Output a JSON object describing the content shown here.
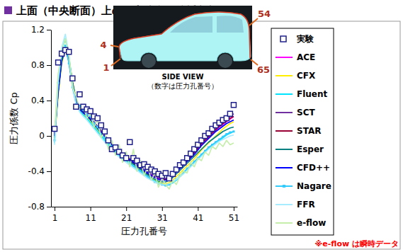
{
  "chart_data": {
    "type": "line",
    "title": "上面（中央断面）上の圧力分布（偏揺角無し）",
    "x_label": "圧力孔番号",
    "y_label": "圧力係数 Cp",
    "x": [
      1,
      2,
      3,
      4,
      5,
      6,
      7,
      8,
      9,
      10,
      11,
      12,
      13,
      14,
      15,
      16,
      17,
      18,
      19,
      20,
      21,
      22,
      23,
      24,
      25,
      26,
      27,
      28,
      29,
      30,
      31,
      32,
      33,
      34,
      35,
      36,
      37,
      38,
      39,
      40,
      41,
      42,
      43,
      44,
      45,
      46,
      47,
      48,
      49,
      50,
      51
    ],
    "xlim": [
      0,
      52
    ],
    "xticks": [
      1,
      11,
      21,
      31,
      41,
      51
    ],
    "ylim": [
      -0.8,
      1.2
    ],
    "yticks": [
      -0.8,
      -0.4,
      0,
      0.4,
      0.8,
      1.2
    ],
    "grid": false,
    "legend": "right",
    "series": [
      {
        "name": "実験",
        "type": "scatter",
        "marker": "square",
        "color": "#1f1f8c",
        "values": [
          0.08,
          0.83,
          0.93,
          0.97,
          0.95,
          0.65,
          0.33,
          0.47,
          0.33,
          0.3,
          0.28,
          0.22,
          0.2,
          0.12,
          0.05,
          -0.05,
          -0.15,
          -0.13,
          -0.18,
          -0.22,
          -0.25,
          -0.07,
          -0.25,
          -0.28,
          -0.33,
          -0.32,
          -0.35,
          -0.38,
          -0.4,
          -0.43,
          -0.45,
          -0.42,
          -0.48,
          -0.43,
          -0.38,
          -0.33,
          -0.3,
          -0.25,
          -0.2,
          -0.15,
          -0.1,
          -0.05,
          0.0,
          0.03,
          0.08,
          0.12,
          0.15,
          0.18,
          0.2,
          0.25,
          0.35
        ]
      },
      {
        "name": "ACE",
        "type": "line",
        "color": "#ff00ff",
        "values": [
          0.0,
          0.52,
          0.88,
          1.0,
          0.85,
          0.58,
          0.4,
          0.32,
          0.28,
          0.25,
          0.2,
          0.15,
          0.1,
          0.05,
          0.0,
          -0.05,
          -0.1,
          -0.14,
          -0.18,
          -0.21,
          -0.24,
          -0.27,
          -0.3,
          -0.33,
          -0.36,
          -0.39,
          -0.42,
          -0.44,
          -0.46,
          -0.48,
          -0.49,
          -0.49,
          -0.47,
          -0.44,
          -0.4,
          -0.36,
          -0.32,
          -0.28,
          -0.24,
          -0.2,
          -0.15,
          -0.1,
          -0.06,
          -0.02,
          0.02,
          0.06,
          0.1,
          0.13,
          0.16,
          0.19,
          0.22
        ]
      },
      {
        "name": "CFX",
        "type": "line",
        "color": "#ffee00",
        "values": [
          -0.05,
          0.45,
          0.82,
          0.98,
          0.88,
          0.62,
          0.42,
          0.3,
          0.25,
          0.22,
          0.17,
          0.12,
          0.07,
          0.02,
          -0.03,
          -0.08,
          -0.13,
          -0.17,
          -0.21,
          -0.24,
          -0.27,
          -0.3,
          -0.33,
          -0.36,
          -0.39,
          -0.42,
          -0.45,
          -0.48,
          -0.5,
          -0.52,
          -0.54,
          -0.54,
          -0.53,
          -0.5,
          -0.46,
          -0.42,
          -0.38,
          -0.34,
          -0.3,
          -0.26,
          -0.21,
          -0.16,
          -0.12,
          -0.08,
          -0.04,
          0.0,
          0.04,
          0.08,
          0.11,
          0.14,
          0.16
        ]
      },
      {
        "name": "Fluent",
        "type": "line",
        "color": "#00e5ff",
        "values": [
          -0.08,
          0.55,
          0.95,
          1.1,
          0.9,
          0.6,
          0.38,
          0.28,
          0.24,
          0.2,
          0.15,
          0.1,
          0.05,
          0.0,
          -0.05,
          -0.1,
          -0.14,
          -0.18,
          -0.22,
          -0.25,
          -0.28,
          -0.31,
          -0.34,
          -0.37,
          -0.4,
          -0.43,
          -0.46,
          -0.49,
          -0.51,
          -0.53,
          -0.55,
          -0.56,
          -0.55,
          -0.53,
          -0.5,
          -0.46,
          -0.42,
          -0.38,
          -0.34,
          -0.3,
          -0.26,
          -0.22,
          -0.18,
          -0.14,
          -0.11,
          -0.08,
          -0.05,
          -0.02,
          0.01,
          0.03,
          0.05
        ]
      },
      {
        "name": "SCT",
        "type": "line",
        "color": "#7030a0",
        "values": [
          0.0,
          0.5,
          0.86,
          0.99,
          0.86,
          0.6,
          0.41,
          0.31,
          0.27,
          0.24,
          0.2,
          0.16,
          0.11,
          0.06,
          0.01,
          -0.04,
          -0.09,
          -0.13,
          -0.17,
          -0.2,
          -0.23,
          -0.26,
          -0.29,
          -0.32,
          -0.35,
          -0.38,
          -0.41,
          -0.43,
          -0.45,
          -0.47,
          -0.48,
          -0.48,
          -0.46,
          -0.43,
          -0.39,
          -0.35,
          -0.31,
          -0.27,
          -0.23,
          -0.18,
          -0.13,
          -0.08,
          -0.04,
          0.0,
          0.04,
          0.08,
          0.12,
          0.16,
          0.19,
          0.22,
          0.25
        ]
      },
      {
        "name": "STAR",
        "type": "line",
        "color": "#990033",
        "values": [
          0.02,
          0.5,
          0.85,
          0.98,
          0.86,
          0.6,
          0.4,
          0.31,
          0.27,
          0.24,
          0.19,
          0.14,
          0.09,
          0.04,
          -0.01,
          -0.06,
          -0.11,
          -0.15,
          -0.19,
          -0.22,
          -0.25,
          -0.28,
          -0.31,
          -0.34,
          -0.37,
          -0.4,
          -0.43,
          -0.45,
          -0.47,
          -0.49,
          -0.5,
          -0.49,
          -0.47,
          -0.44,
          -0.4,
          -0.36,
          -0.32,
          -0.28,
          -0.24,
          -0.19,
          -0.14,
          -0.09,
          -0.05,
          -0.01,
          0.03,
          0.07,
          0.11,
          0.14,
          0.17,
          0.2,
          0.22
        ]
      },
      {
        "name": "Esper",
        "type": "line",
        "color": "#008080",
        "values": [
          -0.02,
          0.48,
          0.84,
          0.97,
          0.87,
          0.61,
          0.42,
          0.32,
          0.27,
          0.23,
          0.18,
          0.13,
          0.08,
          0.03,
          -0.02,
          -0.07,
          -0.12,
          -0.16,
          -0.2,
          -0.23,
          -0.26,
          -0.29,
          -0.32,
          -0.35,
          -0.38,
          -0.41,
          -0.44,
          -0.47,
          -0.49,
          -0.51,
          -0.52,
          -0.52,
          -0.5,
          -0.47,
          -0.43,
          -0.39,
          -0.35,
          -0.31,
          -0.27,
          -0.23,
          -0.19,
          -0.15,
          -0.11,
          -0.07,
          -0.04,
          -0.01,
          0.02,
          0.05,
          0.07,
          0.09,
          0.1
        ]
      },
      {
        "name": "CFD++",
        "type": "line",
        "color": "#0000ff",
        "values": [
          0.0,
          0.5,
          0.87,
          1.0,
          0.84,
          0.57,
          0.39,
          0.3,
          0.26,
          0.23,
          0.19,
          0.14,
          0.09,
          0.04,
          -0.01,
          -0.06,
          -0.1,
          -0.14,
          -0.18,
          -0.21,
          -0.24,
          -0.27,
          -0.3,
          -0.33,
          -0.36,
          -0.39,
          -0.42,
          -0.45,
          -0.47,
          -0.49,
          -0.5,
          -0.5,
          -0.48,
          -0.45,
          -0.41,
          -0.37,
          -0.33,
          -0.29,
          -0.25,
          -0.21,
          -0.16,
          -0.11,
          -0.07,
          -0.03,
          0.01,
          0.05,
          0.08,
          0.11,
          0.14,
          0.16,
          0.18
        ]
      },
      {
        "name": "Nagare",
        "type": "line",
        "marker": "square",
        "color": "#33ccff",
        "values": [
          -0.05,
          0.6,
          0.92,
          1.02,
          0.82,
          0.55,
          0.36,
          0.34,
          0.3,
          0.24,
          0.22,
          0.14,
          0.1,
          0.02,
          -0.02,
          -0.08,
          -0.12,
          -0.16,
          -0.2,
          -0.24,
          -0.27,
          -0.3,
          -0.34,
          -0.37,
          -0.4,
          -0.43,
          -0.46,
          -0.49,
          -0.52,
          -0.54,
          -0.55,
          -0.56,
          -0.55,
          -0.52,
          -0.49,
          -0.45,
          -0.41,
          -0.37,
          -0.33,
          -0.29,
          -0.25,
          -0.21,
          -0.17,
          -0.13,
          -0.1,
          -0.07,
          -0.04,
          -0.01,
          0.02,
          0.04,
          0.05
        ]
      },
      {
        "name": "FFR",
        "type": "line",
        "color": "#a8ecff",
        "values": [
          -0.1,
          0.62,
          1.0,
          1.15,
          0.92,
          0.58,
          0.36,
          0.27,
          0.22,
          0.18,
          0.13,
          0.08,
          0.03,
          -0.02,
          -0.07,
          -0.12,
          -0.16,
          -0.2,
          -0.24,
          -0.27,
          -0.3,
          -0.33,
          -0.36,
          -0.39,
          -0.42,
          -0.45,
          -0.48,
          -0.5,
          -0.52,
          -0.54,
          -0.55,
          -0.55,
          -0.54,
          -0.52,
          -0.49,
          -0.46,
          -0.43,
          -0.39,
          -0.35,
          -0.31,
          -0.27,
          -0.23,
          -0.19,
          -0.15,
          -0.12,
          -0.09,
          -0.06,
          -0.04,
          -0.02,
          0.0,
          0.01
        ]
      },
      {
        "name": "e-flow",
        "type": "line",
        "color": "#c4eeaa",
        "values": [
          0.05,
          0.7,
          0.95,
          1.1,
          0.9,
          0.55,
          0.45,
          0.3,
          0.35,
          0.2,
          0.25,
          0.1,
          0.18,
          -0.02,
          0.05,
          -0.15,
          -0.05,
          -0.22,
          -0.1,
          -0.3,
          -0.18,
          -0.35,
          -0.15,
          -0.4,
          -0.28,
          -0.45,
          -0.35,
          -0.5,
          -0.42,
          -0.58,
          -0.48,
          -0.55,
          -0.6,
          -0.5,
          -0.55,
          -0.45,
          -0.4,
          -0.42,
          -0.3,
          -0.35,
          -0.25,
          -0.28,
          -0.18,
          -0.22,
          -0.12,
          -0.15,
          -0.08,
          -0.12,
          -0.05,
          -0.1,
          -0.08
        ]
      }
    ],
    "annotations": [
      "SIDE VIEW",
      "（数字は圧力孔番号）",
      "4",
      "1",
      "54",
      "65",
      "※e-flow は瞬時データ"
    ]
  }
}
